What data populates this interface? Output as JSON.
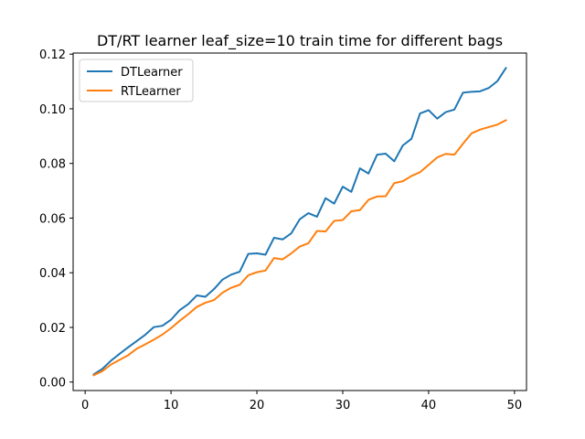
{
  "chart_data": {
    "type": "line",
    "title": "DT/RT learner leaf_size=10 train time for different bags",
    "xlabel": "",
    "ylabel": "",
    "xlim": [
      -1.4,
      51.4
    ],
    "ylim": [
      -0.0031,
      0.1204
    ],
    "xticks": [
      0,
      10,
      20,
      30,
      40,
      50
    ],
    "xtick_labels": [
      "0",
      "10",
      "20",
      "30",
      "40",
      "50"
    ],
    "yticks": [
      0.0,
      0.02,
      0.04,
      0.06,
      0.08,
      0.1,
      0.12
    ],
    "ytick_labels": [
      "0.00",
      "0.02",
      "0.04",
      "0.06",
      "0.08",
      "0.10",
      "0.12"
    ],
    "grid": false,
    "legend": "top-left",
    "x": [
      1,
      2,
      3,
      4,
      5,
      6,
      7,
      8,
      9,
      10,
      11,
      12,
      13,
      14,
      15,
      16,
      17,
      18,
      19,
      20,
      21,
      22,
      23,
      24,
      25,
      26,
      27,
      28,
      29,
      30,
      31,
      32,
      33,
      34,
      35,
      36,
      37,
      38,
      39,
      40,
      41,
      42,
      43,
      44,
      45,
      46,
      47,
      48,
      49
    ],
    "series": [
      {
        "name": "DTLearner",
        "color": "#1f77b4",
        "values": [
          0.0028,
          0.0048,
          0.0078,
          0.0103,
          0.0127,
          0.015,
          0.0173,
          0.0201,
          0.0206,
          0.0228,
          0.0263,
          0.0285,
          0.0317,
          0.0312,
          0.034,
          0.0375,
          0.0393,
          0.0404,
          0.0469,
          0.0471,
          0.0466,
          0.0528,
          0.0522,
          0.0544,
          0.0596,
          0.0618,
          0.0605,
          0.0673,
          0.0653,
          0.0715,
          0.0696,
          0.0782,
          0.0763,
          0.0832,
          0.0836,
          0.0808,
          0.0866,
          0.089,
          0.0983,
          0.0995,
          0.0964,
          0.0988,
          0.0997,
          0.1059,
          0.1062,
          0.1064,
          0.1076,
          0.1101,
          0.1149
        ]
      },
      {
        "name": "RTLearner",
        "color": "#ff7f0e",
        "values": [
          0.0025,
          0.004,
          0.0064,
          0.0081,
          0.0098,
          0.0122,
          0.0138,
          0.0155,
          0.0174,
          0.0197,
          0.0224,
          0.0248,
          0.0275,
          0.029,
          0.03,
          0.0327,
          0.0345,
          0.0356,
          0.0391,
          0.0402,
          0.0408,
          0.0454,
          0.0449,
          0.0471,
          0.0496,
          0.0508,
          0.0553,
          0.0551,
          0.059,
          0.0593,
          0.0625,
          0.0629,
          0.0667,
          0.0679,
          0.068,
          0.0728,
          0.0735,
          0.0754,
          0.0768,
          0.0795,
          0.0822,
          0.0835,
          0.0832,
          0.0872,
          0.091,
          0.0924,
          0.0933,
          0.0942,
          0.0958
        ]
      }
    ]
  }
}
